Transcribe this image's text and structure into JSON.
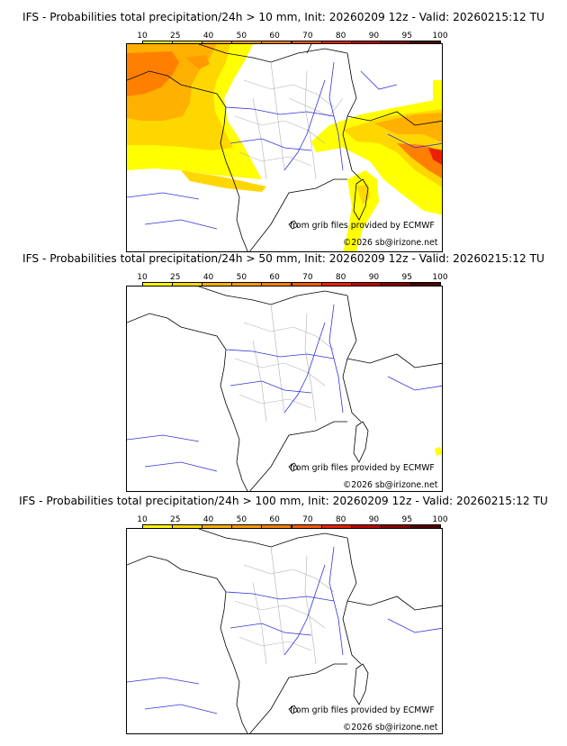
{
  "colorbar": {
    "labels": [
      "10",
      "25",
      "40",
      "50",
      "60",
      "70",
      "80",
      "90",
      "95",
      "100"
    ],
    "colors": [
      "#ffff00",
      "#ffd700",
      "#ffb000",
      "#ff9a00",
      "#ff8000",
      "#ff5a00",
      "#ee2000",
      "#c00000",
      "#8a0000",
      "#500000"
    ]
  },
  "panels": [
    {
      "title": "IFS - Probabilities total precipitation/24h > 10 mm, Init: 20260209 12z - Valid: 20260215:12 TU",
      "credit_source": "from grib files provided by ECMWF",
      "credit_copyright": "©2026 sb@irizone.net"
    },
    {
      "title": "IFS - Probabilities total precipitation/24h > 50 mm, Init: 20260209 12z - Valid: 20260215:12 TU",
      "credit_source": "from grib files provided by ECMWF",
      "credit_copyright": "©2026 sb@irizone.net"
    },
    {
      "title": "IFS - Probabilities total precipitation/24h > 100 mm, Init: 20260209 12z - Valid: 20260215:12 TU",
      "credit_source": "from grib files provided by ECMWF",
      "credit_copyright": "©2026 sb@irizone.net"
    }
  ]
}
